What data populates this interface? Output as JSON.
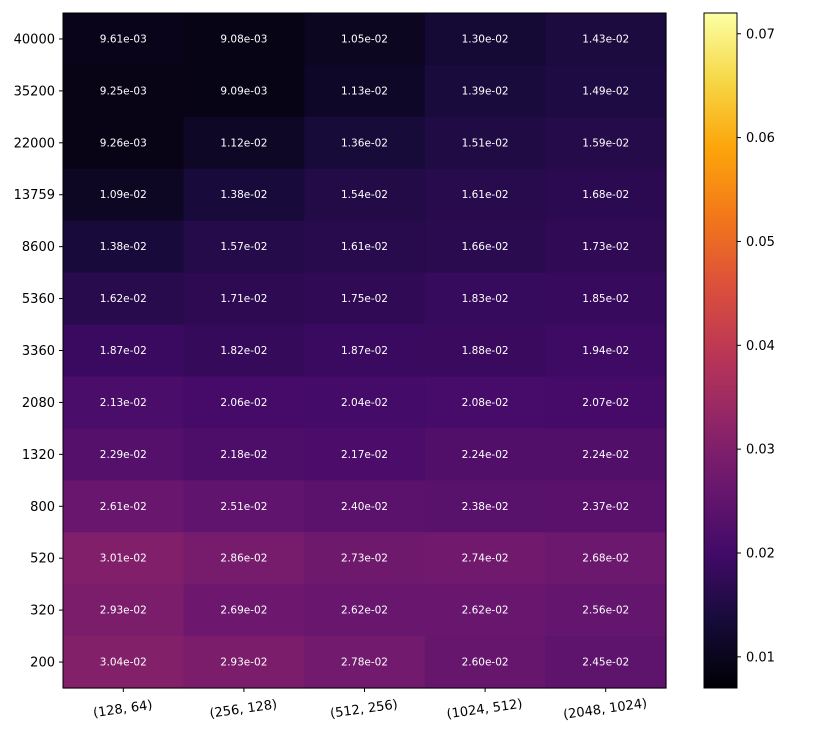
{
  "chart_data": {
    "type": "heatmap",
    "title": "",
    "xlabel": "",
    "ylabel": "",
    "categories_x": [
      "(128, 64)",
      "(256, 128)",
      "(512, 256)",
      "(1024, 512)",
      "(2048, 1024)"
    ],
    "categories_y": [
      "40000",
      "35200",
      "22000",
      "13759",
      "8600",
      "5360",
      "3360",
      "2080",
      "1320",
      "800",
      "520",
      "320",
      "200"
    ],
    "values": [
      [
        0.00961,
        0.00908,
        0.0105,
        0.013,
        0.0143
      ],
      [
        0.00925,
        0.00909,
        0.0113,
        0.0139,
        0.0149
      ],
      [
        0.00926,
        0.0112,
        0.0136,
        0.0151,
        0.0159
      ],
      [
        0.0109,
        0.0138,
        0.0154,
        0.0161,
        0.0168
      ],
      [
        0.0138,
        0.0157,
        0.0161,
        0.0166,
        0.0173
      ],
      [
        0.0162,
        0.0171,
        0.0175,
        0.0183,
        0.0185
      ],
      [
        0.0187,
        0.0182,
        0.0187,
        0.0188,
        0.0194
      ],
      [
        0.0213,
        0.0206,
        0.0204,
        0.0208,
        0.0207
      ],
      [
        0.0229,
        0.0218,
        0.0217,
        0.0224,
        0.0224
      ],
      [
        0.0261,
        0.0251,
        0.024,
        0.0238,
        0.0237
      ],
      [
        0.0301,
        0.0286,
        0.0273,
        0.0274,
        0.0268
      ],
      [
        0.0293,
        0.0269,
        0.0262,
        0.0262,
        0.0256
      ],
      [
        0.0304,
        0.0293,
        0.0278,
        0.026,
        0.0245
      ]
    ],
    "cell_labels": [
      [
        "9.61e-03",
        "9.08e-03",
        "1.05e-02",
        "1.30e-02",
        "1.43e-02"
      ],
      [
        "9.25e-03",
        "9.09e-03",
        "1.13e-02",
        "1.39e-02",
        "1.49e-02"
      ],
      [
        "9.26e-03",
        "1.12e-02",
        "1.36e-02",
        "1.51e-02",
        "1.59e-02"
      ],
      [
        "1.09e-02",
        "1.38e-02",
        "1.54e-02",
        "1.61e-02",
        "1.68e-02"
      ],
      [
        "1.38e-02",
        "1.57e-02",
        "1.61e-02",
        "1.66e-02",
        "1.73e-02"
      ],
      [
        "1.62e-02",
        "1.71e-02",
        "1.75e-02",
        "1.83e-02",
        "1.85e-02"
      ],
      [
        "1.87e-02",
        "1.82e-02",
        "1.87e-02",
        "1.88e-02",
        "1.94e-02"
      ],
      [
        "2.13e-02",
        "2.06e-02",
        "2.04e-02",
        "2.08e-02",
        "2.07e-02"
      ],
      [
        "2.29e-02",
        "2.18e-02",
        "2.17e-02",
        "2.24e-02",
        "2.24e-02"
      ],
      [
        "2.61e-02",
        "2.51e-02",
        "2.40e-02",
        "2.38e-02",
        "2.37e-02"
      ],
      [
        "3.01e-02",
        "2.86e-02",
        "2.73e-02",
        "2.74e-02",
        "2.68e-02"
      ],
      [
        "2.93e-02",
        "2.69e-02",
        "2.62e-02",
        "2.62e-02",
        "2.56e-02"
      ],
      [
        "3.04e-02",
        "2.93e-02",
        "2.78e-02",
        "2.60e-02",
        "2.45e-02"
      ]
    ],
    "colormap": "inferno",
    "colorbar": {
      "range": [
        0.007,
        0.072
      ],
      "ticks": [
        0.01,
        0.02,
        0.03,
        0.04,
        0.05,
        0.06,
        0.07
      ],
      "tick_labels": [
        "0.01",
        "0.02",
        "0.03",
        "0.04",
        "0.05",
        "0.06",
        "0.07"
      ]
    },
    "grid": false,
    "legend": "colorbar-right"
  }
}
